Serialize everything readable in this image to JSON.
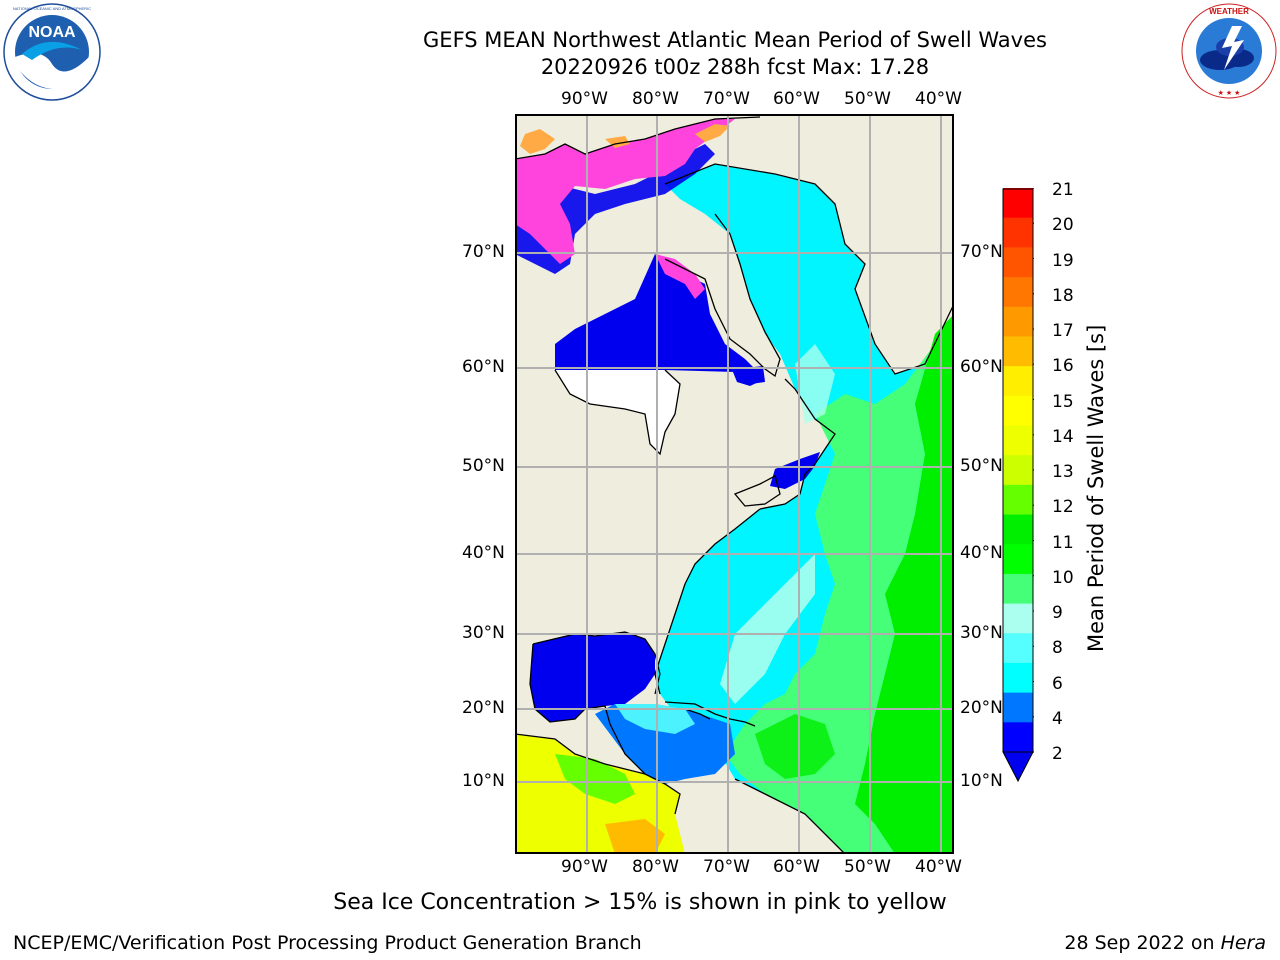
{
  "header": {
    "title_line1": "GEFS MEAN Northwest Atlantic Mean Period of Swell Waves",
    "title_line2": "20220926 t00z 288h fcst   Max: 17.28"
  },
  "logos": {
    "left_text": "NOAA",
    "left_ring_text": "NATIONAL OCEANIC AND ATMOSPHERIC ADMINISTRATION · U.S. DEPARTMENT OF COMMERCE",
    "right_ring_text": "NATIONAL WEATHER SERVICE"
  },
  "map": {
    "lon_labels": [
      "90°W",
      "80°W",
      "70°W",
      "60°W",
      "50°W",
      "40°W"
    ],
    "lat_labels": [
      "70°N",
      "60°N",
      "50°N",
      "40°N",
      "30°N",
      "20°N",
      "10°N"
    ]
  },
  "colorbar": {
    "title": "Mean Period of Swell Waves [s]",
    "tick_labels": [
      "21",
      "20",
      "19",
      "18",
      "17",
      "16",
      "15",
      "14",
      "13",
      "12",
      "11",
      "10",
      "9",
      "8",
      "6",
      "4",
      "2"
    ],
    "colors": [
      "#ff0000",
      "#ff3300",
      "#ff5500",
      "#ff7700",
      "#ff9900",
      "#ffbb00",
      "#ffee00",
      "#ffff00",
      "#eeff00",
      "#ccff00",
      "#66ff00",
      "#00ee00",
      "#00ff00",
      "#44ff77",
      "#aaffee",
      "#55ffff",
      "#00ffff",
      "#0077ff",
      "#0000ff"
    ],
    "extend_color": "#0000ee"
  },
  "caption": "Sea Ice Concentration > 15% is shown in pink to yellow",
  "footer": {
    "left": "NCEP/EMC/Verification Post Processing Product Generation Branch",
    "right_prefix": "28 Sep 2022 on ",
    "right_italic": "Hera"
  }
}
